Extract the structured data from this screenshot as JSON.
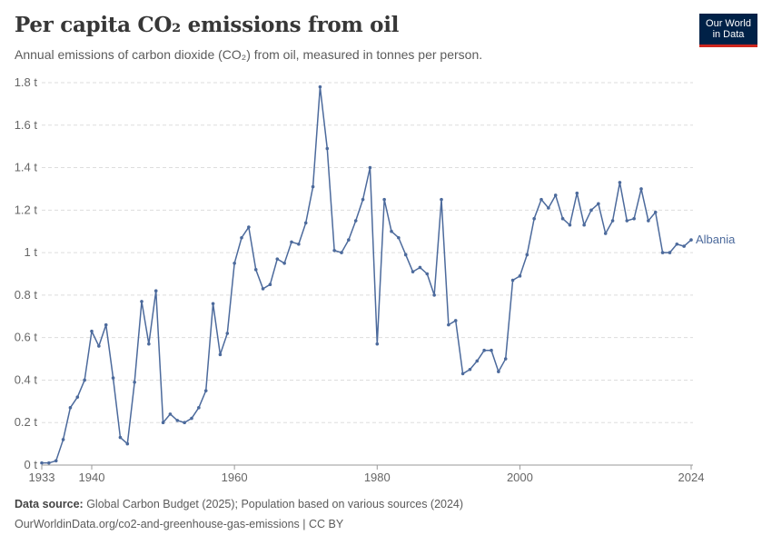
{
  "header": {
    "title": "Per capita CO₂ emissions from oil",
    "subtitle": "Annual emissions of carbon dioxide (CO₂) from oil, measured in tonnes per person."
  },
  "logo": {
    "line1": "Our World",
    "line2": "in Data",
    "bg_color": "#002147",
    "accent_color": "#ce261e"
  },
  "footer": {
    "source_label": "Data source:",
    "source_text": " Global Carbon Budget (2025); Population based on various sources (2024)",
    "url": "OurWorldinData.org/co2-and-greenhouse-gas-emissions | CC BY"
  },
  "chart_data": {
    "type": "line",
    "title": "Per capita CO₂ emissions from oil",
    "xlabel": "",
    "ylabel": "",
    "xlim": [
      1933,
      2024
    ],
    "ylim": [
      0,
      1.8
    ],
    "grid": true,
    "x_ticks": [
      1933,
      1940,
      1960,
      1980,
      2000,
      2024
    ],
    "y_ticks": [
      {
        "v": 0,
        "label": "0 t"
      },
      {
        "v": 0.2,
        "label": "0.2 t"
      },
      {
        "v": 0.4,
        "label": "0.4 t"
      },
      {
        "v": 0.6,
        "label": "0.6 t"
      },
      {
        "v": 0.8,
        "label": "0.8 t"
      },
      {
        "v": 1,
        "label": "1 t"
      },
      {
        "v": 1.2,
        "label": "1.2 t"
      },
      {
        "v": 1.4,
        "label": "1.4 t"
      },
      {
        "v": 1.6,
        "label": "1.6 t"
      },
      {
        "v": 1.8,
        "label": "1.8 t"
      }
    ],
    "legend": "end-of-line label",
    "series": [
      {
        "name": "Albania",
        "color": "#4c6a9c",
        "x": [
          1933,
          1934,
          1935,
          1936,
          1937,
          1938,
          1939,
          1940,
          1941,
          1942,
          1943,
          1944,
          1945,
          1946,
          1947,
          1948,
          1949,
          1950,
          1951,
          1952,
          1953,
          1954,
          1955,
          1956,
          1957,
          1958,
          1959,
          1960,
          1961,
          1962,
          1963,
          1964,
          1965,
          1966,
          1967,
          1968,
          1969,
          1970,
          1971,
          1972,
          1973,
          1974,
          1975,
          1976,
          1977,
          1978,
          1979,
          1980,
          1981,
          1982,
          1983,
          1984,
          1985,
          1986,
          1987,
          1988,
          1989,
          1990,
          1991,
          1992,
          1993,
          1994,
          1995,
          1996,
          1997,
          1998,
          1999,
          2000,
          2001,
          2002,
          2003,
          2004,
          2005,
          2006,
          2007,
          2008,
          2009,
          2010,
          2011,
          2012,
          2013,
          2014,
          2015,
          2016,
          2017,
          2018,
          2019,
          2020,
          2021,
          2022,
          2023,
          2024
        ],
        "values": [
          0.01,
          0.01,
          0.02,
          0.12,
          0.27,
          0.32,
          0.4,
          0.63,
          0.56,
          0.66,
          0.41,
          0.13,
          0.1,
          0.39,
          0.77,
          0.57,
          0.82,
          0.2,
          0.24,
          0.21,
          0.2,
          0.22,
          0.27,
          0.35,
          0.76,
          0.52,
          0.62,
          0.95,
          1.07,
          1.12,
          0.92,
          0.83,
          0.85,
          0.97,
          0.95,
          1.05,
          1.04,
          1.14,
          1.31,
          1.78,
          1.49,
          1.01,
          1.0,
          1.06,
          1.15,
          1.25,
          1.4,
          0.57,
          1.25,
          1.1,
          1.07,
          0.99,
          0.91,
          0.93,
          0.9,
          0.8,
          1.25,
          0.66,
          0.68,
          0.43,
          0.45,
          0.49,
          0.54,
          0.54,
          0.44,
          0.5,
          0.87,
          0.89,
          0.99,
          1.16,
          1.25,
          1.21,
          1.27,
          1.16,
          1.13,
          1.28,
          1.13,
          1.2,
          1.23,
          1.09,
          1.15,
          1.33,
          1.15,
          1.16,
          1.3,
          1.15,
          1.19,
          1.0,
          1.0,
          1.04,
          1.03,
          1.06
        ]
      }
    ]
  }
}
